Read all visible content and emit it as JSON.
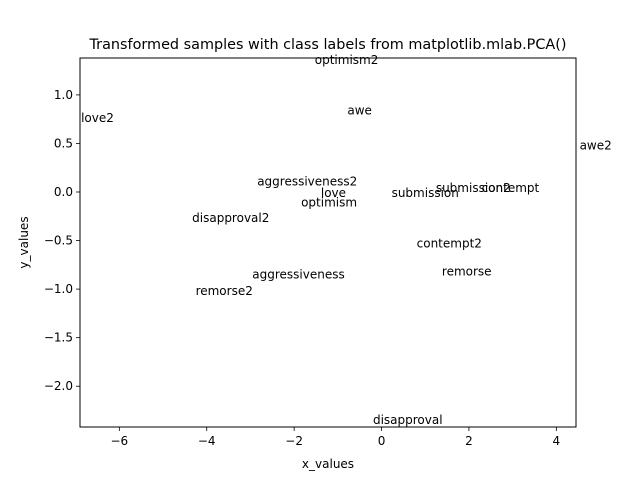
{
  "chart_data": {
    "type": "scatter",
    "title": "Transformed samples with class labels from matplotlib.mlab.PCA()",
    "xlabel": "x_values",
    "ylabel": "y_values",
    "xlim": [
      -6.9,
      4.45
    ],
    "ylim": [
      -2.42,
      1.38
    ],
    "xticks": [
      -6,
      -4,
      -2,
      0,
      2,
      4
    ],
    "xtick_labels": [
      "−6",
      "−4",
      "−2",
      "0",
      "2",
      "4"
    ],
    "yticks": [
      1.0,
      0.5,
      0.0,
      -0.5,
      -1.0,
      -1.5,
      -2.0
    ],
    "ytick_labels": [
      "1.0",
      "0.5",
      "0.0",
      "−0.5",
      "−1.0",
      "−1.5",
      "−2.0"
    ],
    "grid": false,
    "marker": "text-label",
    "points": [
      {
        "label": "optimism2",
        "x": -0.8,
        "y": 1.36
      },
      {
        "label": "awe",
        "x": -0.5,
        "y": 0.84
      },
      {
        "label": "love2",
        "x": -6.5,
        "y": 0.76
      },
      {
        "label": "awe2",
        "x": 4.9,
        "y": 0.48
      },
      {
        "label": "aggressiveness2",
        "x": -1.7,
        "y": 0.11
      },
      {
        "label": "love",
        "x": -1.1,
        "y": -0.01
      },
      {
        "label": "optimism",
        "x": -1.2,
        "y": -0.11
      },
      {
        "label": "submission",
        "x": 1.0,
        "y": -0.01
      },
      {
        "label": "submission2",
        "x": 2.1,
        "y": 0.04
      },
      {
        "label": "contempt",
        "x": 2.95,
        "y": 0.04
      },
      {
        "label": "disapproval2",
        "x": -3.45,
        "y": -0.27
      },
      {
        "label": "contempt2",
        "x": 1.55,
        "y": -0.53
      },
      {
        "label": "remorse",
        "x": 1.95,
        "y": -0.82
      },
      {
        "label": "aggressiveness",
        "x": -1.9,
        "y": -0.85
      },
      {
        "label": "remorse2",
        "x": -3.6,
        "y": -1.02
      },
      {
        "label": "disapproval",
        "x": 0.6,
        "y": -2.35
      }
    ]
  }
}
